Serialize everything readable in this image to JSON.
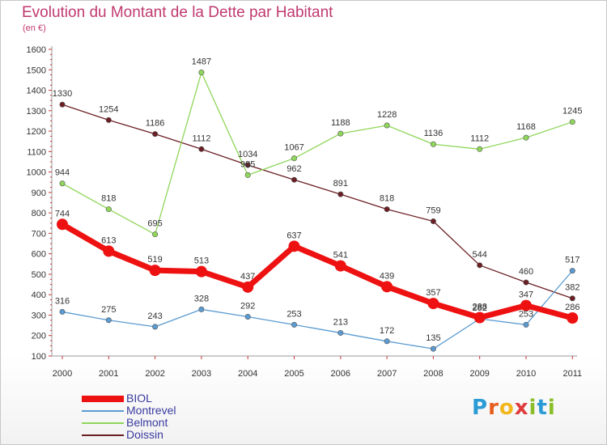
{
  "header": {
    "title": "Evolution du Montant de la Dette par Habitant",
    "subtitle": "(en €)"
  },
  "logo": {
    "letters": [
      "P",
      "r",
      "o",
      "x",
      "i",
      "t",
      "i"
    ],
    "colors": [
      "#2b9bd6",
      "#e85c1c",
      "#f2b71c",
      "#e03a3a",
      "#8bbd2a",
      "#2b9bd6",
      "#8bbd2a"
    ]
  },
  "chart_data": {
    "type": "line",
    "title": "Evolution du Montant de la Dette par Habitant",
    "subtitle": "(en €)",
    "xlabel": "",
    "ylabel": "",
    "x": [
      "2000",
      "2001",
      "2002",
      "2003",
      "2004",
      "2005",
      "2006",
      "2007",
      "2008",
      "2009",
      "2010",
      "2011"
    ],
    "yticks": [
      100,
      200,
      300,
      400,
      500,
      600,
      700,
      800,
      900,
      1000,
      1100,
      1200,
      1300,
      1400,
      1500,
      1600
    ],
    "ylim": [
      100,
      1600
    ],
    "grid": false,
    "legend_position": "bottom-left",
    "series": [
      {
        "name": "Doissin",
        "color": "#6b1f24",
        "values": [
          1330,
          1254,
          1186,
          1112,
          1034,
          962,
          891,
          818,
          759,
          544,
          460,
          382
        ]
      },
      {
        "name": "Belmont",
        "color": "#8fd65a",
        "values": [
          944,
          818,
          695,
          1487,
          985,
          1067,
          1188,
          1228,
          1136,
          1112,
          1168,
          1245
        ]
      },
      {
        "name": "Montrevel",
        "color": "#5b9bd1",
        "values": [
          316,
          275,
          243,
          328,
          292,
          253,
          213,
          172,
          135,
          282,
          253,
          517
        ]
      },
      {
        "name": "BIOL",
        "color": "#ee1111",
        "values": [
          744,
          613,
          519,
          513,
          437,
          637,
          541,
          439,
          357,
          288,
          347,
          286
        ]
      }
    ],
    "legend_order": [
      "BIOL",
      "Montrevel",
      "Belmont",
      "Doissin"
    ]
  }
}
